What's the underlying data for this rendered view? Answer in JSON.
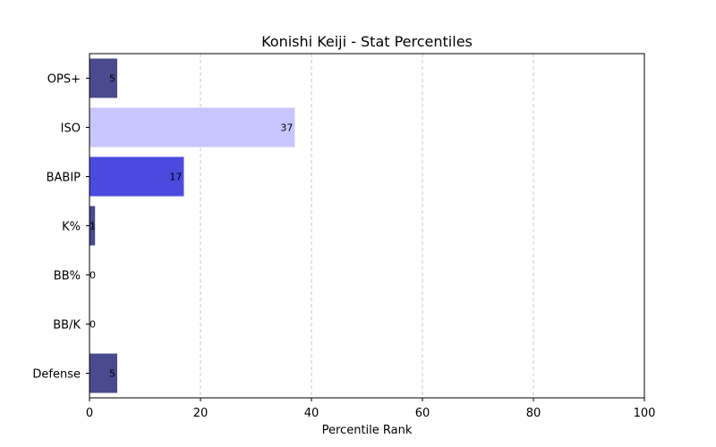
{
  "chart_data": {
    "type": "bar",
    "orientation": "horizontal",
    "title": "Konishi Keiji - Stat Percentiles",
    "xlabel": "Percentile Rank",
    "ylabel": "",
    "xlim": [
      0,
      100
    ],
    "xticks": [
      0,
      20,
      40,
      60,
      80,
      100
    ],
    "grid": "x-dashed",
    "categories": [
      "OPS+",
      "ISO",
      "BABIP",
      "K%",
      "BB%",
      "BB/K",
      "Defense"
    ],
    "values": [
      5,
      37,
      17,
      1,
      0,
      0,
      5
    ],
    "colors": [
      "#4a4a8f",
      "#c9c6ff",
      "#4b4adf",
      "#4a4a8f",
      "#4a4a8f",
      "#4a4a8f",
      "#4a4a8f"
    ]
  }
}
